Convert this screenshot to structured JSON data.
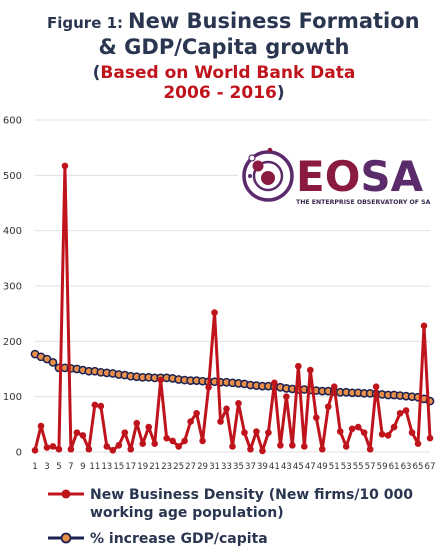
{
  "title": {
    "figure_label": "Figure 1:",
    "line1": "New Business Formation",
    "line2": "& GDP/Capita growth",
    "line3": "Based on World Bank Data",
    "line4": "2006 - 2016"
  },
  "logo": {
    "part1": "EO",
    "part2": "SA",
    "subtitle": "THE ENTERPRISE OBSERVATORY OF SA"
  },
  "legend": [
    {
      "line1": "New Business Density (New firms/10 000",
      "line2": "working age population)"
    },
    {
      "line1": "% increase GDP/capita",
      "line2": ""
    }
  ],
  "colors": {
    "series1": "#c0141c",
    "series2_fill": "#e8904a",
    "series2_stroke": "#1a2050",
    "grid": "#e0e0e0"
  },
  "chart_data": {
    "type": "line",
    "ylim": [
      0,
      600
    ],
    "yticks": [
      0,
      100,
      200,
      300,
      400,
      500,
      600
    ],
    "grid": true,
    "legend_position": "bottom",
    "x": [
      1,
      2,
      3,
      4,
      5,
      6,
      7,
      8,
      9,
      10,
      11,
      12,
      13,
      14,
      15,
      16,
      17,
      18,
      19,
      20,
      21,
      22,
      23,
      24,
      25,
      26,
      27,
      28,
      29,
      30,
      31,
      32,
      33,
      34,
      35,
      36,
      37,
      38,
      39,
      40,
      41,
      42,
      43,
      44,
      45,
      46,
      47,
      48,
      49,
      50,
      51,
      52,
      53,
      54,
      55,
      56,
      57,
      58,
      59,
      60,
      61,
      62,
      63,
      64,
      65,
      66,
      67
    ],
    "xtick_labels": [
      "1",
      "3",
      "5",
      "7",
      "9",
      "11",
      "13",
      "15",
      "17",
      "19",
      "21",
      "23",
      "25",
      "27",
      "29",
      "31",
      "33",
      "35",
      "37",
      "39",
      "41",
      "43",
      "45",
      "47",
      "49",
      "51",
      "53",
      "55",
      "57",
      "59",
      "61",
      "63",
      "65",
      "67"
    ],
    "series": [
      {
        "name": "New Business Density (New firms/10 000 working age population)",
        "values": [
          3,
          47,
          8,
          10,
          5,
          517,
          5,
          35,
          30,
          5,
          85,
          83,
          10,
          3,
          12,
          35,
          5,
          52,
          15,
          45,
          15,
          130,
          25,
          20,
          10,
          20,
          55,
          70,
          20,
          117,
          252,
          55,
          78,
          10,
          88,
          35,
          5,
          37,
          2,
          35,
          125,
          12,
          100,
          12,
          155,
          10,
          148,
          62,
          5,
          82,
          118,
          37,
          10,
          42,
          45,
          35,
          5,
          118,
          32,
          30,
          45,
          70,
          75,
          35,
          15,
          228,
          25
        ]
      },
      {
        "name": "% increase GDP/capita",
        "values": [
          177,
          172,
          168,
          162,
          152,
          152,
          151,
          150,
          148,
          146,
          146,
          144,
          143,
          142,
          140,
          139,
          137,
          136,
          135,
          135,
          134,
          134,
          134,
          133,
          131,
          130,
          129,
          129,
          128,
          127,
          127,
          126,
          126,
          125,
          124,
          123,
          121,
          120,
          119,
          119,
          118,
          117,
          115,
          114,
          113,
          113,
          112,
          111,
          110,
          110,
          109,
          108,
          108,
          107,
          107,
          106,
          106,
          105,
          104,
          103,
          103,
          102,
          101,
          100,
          99,
          96,
          92
        ]
      }
    ]
  }
}
